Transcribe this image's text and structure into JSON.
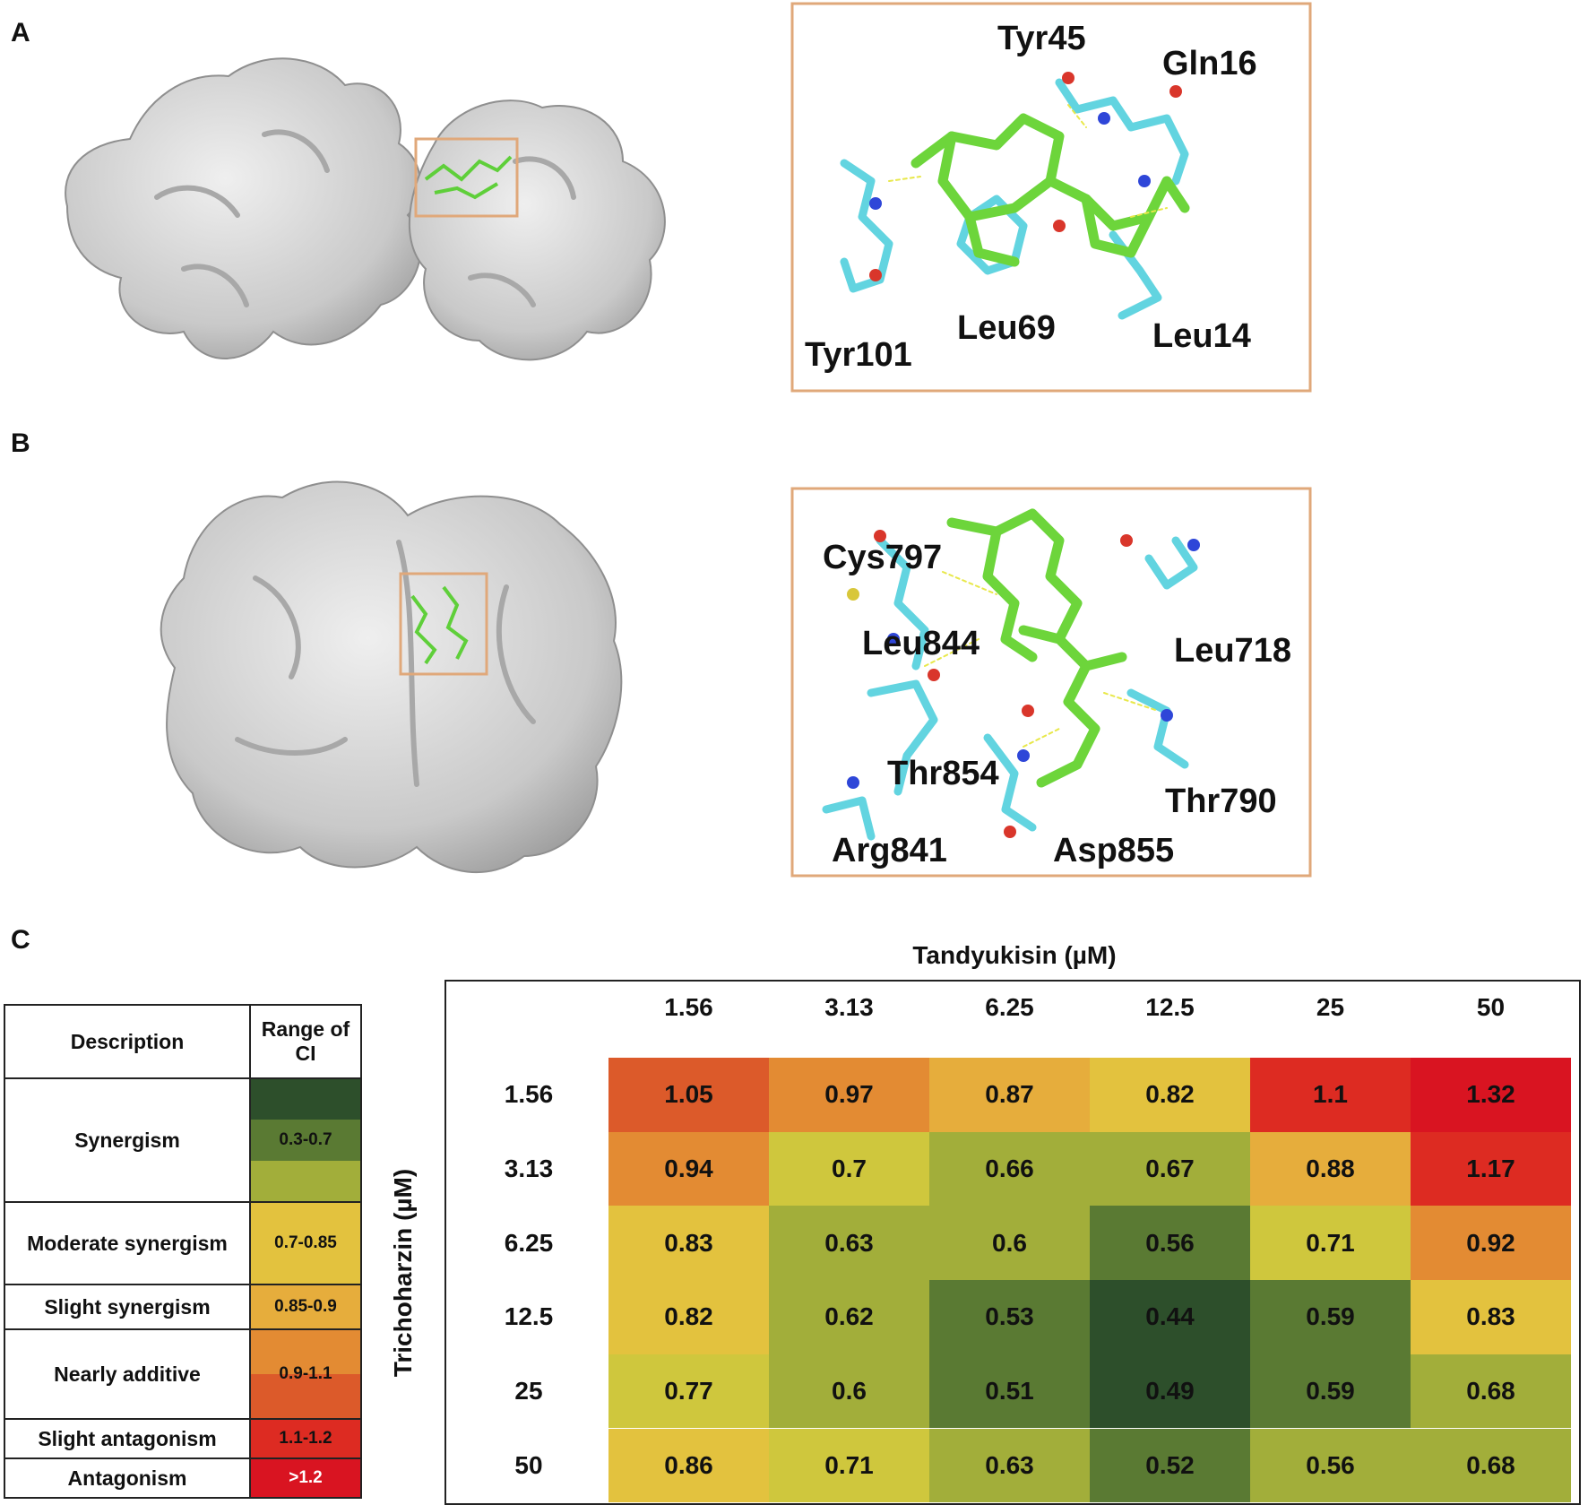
{
  "panels": {
    "a": "A",
    "b": "B",
    "c": "C"
  },
  "panel_a_residues": [
    "Tyr45",
    "Gln16",
    "Tyr101",
    "Leu69",
    "Leu14"
  ],
  "panel_b_residues": [
    "Cys797",
    "Leu844",
    "Leu718",
    "Thr854",
    "Thr790",
    "Arg841",
    "Asp855"
  ],
  "legend": {
    "header_description": "Description",
    "header_range": "Range of CI",
    "rows": [
      {
        "label": "Synergism",
        "range": "0.3-0.7",
        "colors": [
          "#2d4f2b",
          "#5a7a33",
          "#a2ae3a"
        ]
      },
      {
        "label": "Moderate synergism",
        "range": "0.7-0.85",
        "colors": [
          "#e3c23e"
        ]
      },
      {
        "label": "Slight synergism",
        "range": "0.85-0.9",
        "colors": [
          "#e6ad3c"
        ]
      },
      {
        "label": "Nearly additive",
        "range": "0.9-1.1",
        "colors": [
          "#e38b33",
          "#dc5a2a"
        ]
      },
      {
        "label": "Slight  antagonism",
        "range": "1.1-1.2",
        "colors": [
          "#dd2b22"
        ]
      },
      {
        "label": "Antagonism",
        "range": ">1.2",
        "colors": [
          "#d91421"
        ]
      }
    ]
  },
  "chart_data": {
    "type": "heatmap",
    "title": "Tandyukisin (µM)",
    "xlabel": "Tandyukisin (µM)",
    "ylabel": "Trichoharzin (µM)",
    "x": [
      "1.56",
      "3.13",
      "6.25",
      "12.5",
      "25",
      "50"
    ],
    "y": [
      "1.56",
      "3.13",
      "6.25",
      "12.5",
      "25",
      "50"
    ],
    "values": [
      [
        1.05,
        0.97,
        0.87,
        0.82,
        1.1,
        1.32
      ],
      [
        0.94,
        0.7,
        0.66,
        0.67,
        0.88,
        1.17
      ],
      [
        0.83,
        0.63,
        0.6,
        0.56,
        0.71,
        0.92
      ],
      [
        0.82,
        0.62,
        0.53,
        0.44,
        0.59,
        0.83
      ],
      [
        0.77,
        0.6,
        0.51,
        0.49,
        0.59,
        0.68
      ],
      [
        0.86,
        0.71,
        0.63,
        0.52,
        0.56,
        0.68
      ]
    ],
    "cell_colors": [
      [
        "#dc5a2a",
        "#e38b33",
        "#e6ad3c",
        "#e3c23e",
        "#dd2b22",
        "#d91421"
      ],
      [
        "#e38b33",
        "#cfc73d",
        "#a2ae3a",
        "#a2ae3a",
        "#e6ad3c",
        "#dd2b22"
      ],
      [
        "#e3c23e",
        "#a2ae3a",
        "#a2ae3a",
        "#5a7a33",
        "#cfc73d",
        "#e38b33"
      ],
      [
        "#e3c23e",
        "#a2ae3a",
        "#5a7a33",
        "#2d4f2b",
        "#5a7a33",
        "#e3c23e"
      ],
      [
        "#cfc73d",
        "#a2ae3a",
        "#5a7a33",
        "#2d4f2b",
        "#5a7a33",
        "#a2ae3a"
      ],
      [
        "#e3c23e",
        "#cfc73d",
        "#a2ae3a",
        "#5a7a33",
        "#a2ae3a",
        "#a2ae3a"
      ]
    ]
  }
}
